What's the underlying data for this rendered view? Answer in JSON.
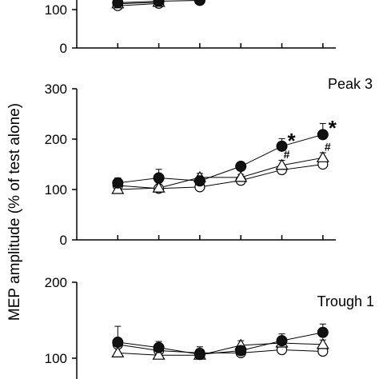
{
  "figure": {
    "ylabel": "MEP amplitude (% of test alone)"
  },
  "chart_data": [
    {
      "type": "line",
      "title": "",
      "ylabel": "MEP amplitude (% of test alone)",
      "yticks": [
        "100",
        "0"
      ],
      "ylim": [
        0,
        150
      ],
      "x": [
        1,
        2,
        3,
        4,
        5,
        6
      ],
      "series": [
        {
          "marker": "filled-circle",
          "values": [
            118,
            122,
            124,
            null,
            null,
            null
          ]
        },
        {
          "marker": "open-triangle",
          "values": [
            115,
            119,
            null,
            null,
            null,
            null
          ]
        },
        {
          "marker": "open-circle",
          "values": [
            110,
            116,
            null,
            null,
            null,
            null
          ]
        }
      ],
      "annotations": []
    },
    {
      "type": "line",
      "title": "Peak 3",
      "ylabel": "MEP amplitude (% of test alone)",
      "yticks": [
        "300",
        "200",
        "100",
        "0"
      ],
      "ylim": [
        0,
        300
      ],
      "x": [
        1,
        2,
        3,
        4,
        5,
        6
      ],
      "series": [
        {
          "marker": "filled-circle",
          "values": [
            113,
            123,
            117,
            146,
            186,
            209
          ],
          "errors": [
            10,
            17,
            10,
            8,
            15,
            22
          ]
        },
        {
          "marker": "open-triangle",
          "values": [
            100,
            103,
            124,
            124,
            148,
            163
          ],
          "errors": [
            8,
            10,
            8,
            6,
            10,
            10
          ]
        },
        {
          "marker": "open-circle",
          "values": [
            108,
            102,
            105,
            118,
            139,
            150
          ],
          "errors": [
            6,
            6,
            5,
            5,
            6,
            8
          ]
        }
      ],
      "annotations": [
        {
          "text": "*",
          "x": 5,
          "y": 205
        },
        {
          "text": "*",
          "x": 6,
          "y": 230
        },
        {
          "text": "#",
          "x": 5,
          "y": 168
        },
        {
          "text": "#",
          "x": 6,
          "y": 183
        }
      ]
    },
    {
      "type": "line",
      "title": "Trough 1",
      "ylabel": "MEP amplitude (% of test alone)",
      "yticks": [
        "200",
        "100"
      ],
      "ylim": [
        90,
        200
      ],
      "x": [
        1,
        2,
        3,
        4,
        5,
        6
      ],
      "series": [
        {
          "marker": "filled-circle",
          "values": [
            121,
            114,
            105,
            110,
            123,
            134
          ],
          "errors": [
            21,
            8,
            10,
            8,
            9,
            11
          ]
        },
        {
          "marker": "open-triangle",
          "values": [
            107,
            104,
            104,
            117,
            120,
            118
          ],
          "errors": [
            8,
            6,
            6,
            6,
            6,
            6
          ]
        },
        {
          "marker": "open-circle",
          "values": [
            118,
            110,
            107,
            107,
            111,
            109
          ],
          "errors": [
            6,
            5,
            5,
            5,
            5,
            5
          ]
        }
      ],
      "annotations": []
    }
  ]
}
